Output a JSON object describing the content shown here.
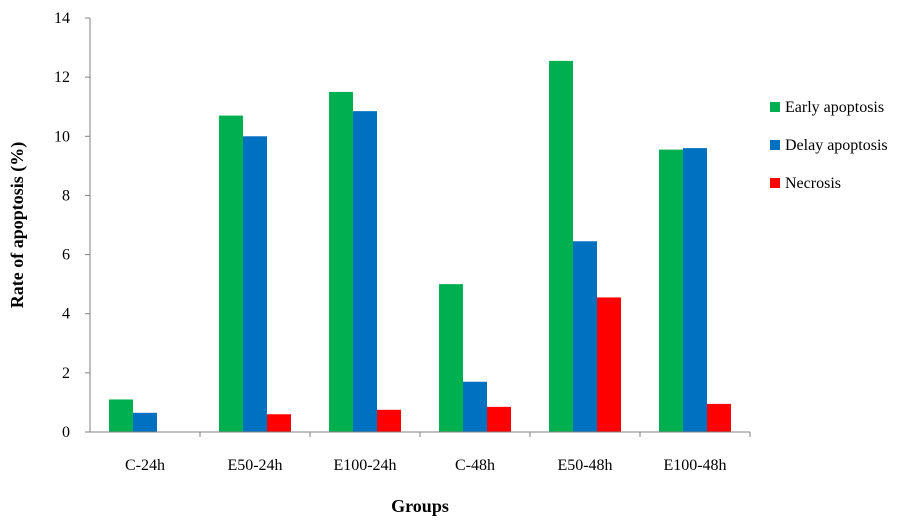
{
  "chart_data": {
    "type": "bar",
    "categories": [
      "C-24h",
      "E50-24h",
      "E100-24h",
      "C-48h",
      "E50-48h",
      "E100-48h"
    ],
    "series": [
      {
        "name": "Early apoptosis",
        "color": "#00b050",
        "values": [
          1.1,
          10.7,
          11.5,
          5.0,
          12.55,
          9.55
        ]
      },
      {
        "name": "Delay apoptosis",
        "color": "#0070c0",
        "values": [
          0.65,
          10.0,
          10.85,
          1.7,
          6.45,
          9.6
        ]
      },
      {
        "name": "Necrosis",
        "color": "#ff0000",
        "values": [
          0,
          0.6,
          0.75,
          0.85,
          4.55,
          0.95
        ]
      }
    ],
    "xlabel": "Groups",
    "ylabel": "Rate of apoptosis  (%)",
    "ylim": [
      0,
      14
    ],
    "yticks": [
      0,
      2,
      4,
      6,
      8,
      10,
      12,
      14
    ],
    "grid": false,
    "legend_position": "right"
  }
}
